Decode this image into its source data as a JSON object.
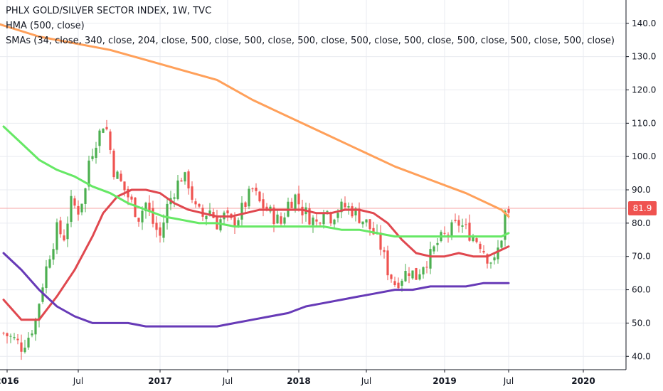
{
  "chart_data": {
    "type": "candlestick",
    "title": "PHLX GOLD/SILVER SECTOR INDEX, 1W, TVC",
    "indicators": [
      "HMA (500, close)",
      "SMAs (34, close, 340, close, 204, close, 500, close, 500, close, 500, close, 500, close, 500, close, 500, close, 500, close, 500, close)"
    ],
    "last_price": "81.9",
    "ylim": [
      36,
      147
    ],
    "y_ticks": [
      "140.0",
      "130.0",
      "120.0",
      "110.0",
      "100.0",
      "90.0",
      "80.0",
      "70.0",
      "60.0",
      "50.0",
      "40.0"
    ],
    "x_ticks": [
      "2016",
      "Jul",
      "2017",
      "Jul",
      "2018",
      "Jul",
      "2019",
      "Jul",
      "2020"
    ],
    "price_path": [
      [
        0,
        47
      ],
      [
        3,
        45
      ],
      [
        5,
        43
      ],
      [
        7,
        46
      ],
      [
        9,
        51
      ],
      [
        11,
        62
      ],
      [
        13,
        71
      ],
      [
        15,
        78
      ],
      [
        17,
        76
      ],
      [
        19,
        86
      ],
      [
        21,
        84
      ],
      [
        23,
        90
      ],
      [
        24,
        99
      ],
      [
        25,
        102
      ],
      [
        26,
        105
      ],
      [
        27,
        107
      ],
      [
        28,
        110
      ],
      [
        29,
        108
      ],
      [
        31,
        96
      ],
      [
        33,
        92
      ],
      [
        35,
        88
      ],
      [
        37,
        84
      ],
      [
        38,
        82
      ],
      [
        40,
        86
      ],
      [
        42,
        80
      ],
      [
        44,
        76
      ],
      [
        46,
        85
      ],
      [
        48,
        90
      ],
      [
        50,
        94
      ],
      [
        52,
        92
      ],
      [
        54,
        84
      ],
      [
        56,
        82
      ],
      [
        58,
        84
      ],
      [
        60,
        80
      ],
      [
        62,
        82
      ],
      [
        64,
        80
      ],
      [
        66,
        82
      ],
      [
        68,
        86
      ],
      [
        70,
        90
      ],
      [
        72,
        86
      ],
      [
        74,
        84
      ],
      [
        76,
        82
      ],
      [
        78,
        80
      ],
      [
        80,
        86
      ],
      [
        82,
        88
      ],
      [
        84,
        84
      ],
      [
        86,
        82
      ],
      [
        88,
        80
      ],
      [
        90,
        85
      ],
      [
        92,
        82
      ],
      [
        94,
        84
      ],
      [
        96,
        85
      ],
      [
        98,
        84
      ],
      [
        100,
        82
      ],
      [
        102,
        80
      ],
      [
        104,
        77
      ],
      [
        106,
        73
      ],
      [
        108,
        66
      ],
      [
        110,
        62
      ],
      [
        112,
        64
      ],
      [
        114,
        66
      ],
      [
        116,
        64
      ],
      [
        118,
        68
      ],
      [
        120,
        70
      ],
      [
        122,
        74
      ],
      [
        124,
        76
      ],
      [
        126,
        78
      ],
      [
        128,
        80
      ],
      [
        130,
        78
      ],
      [
        132,
        76
      ],
      [
        134,
        74
      ],
      [
        136,
        70
      ],
      [
        138,
        68
      ],
      [
        139,
        72
      ],
      [
        140,
        76
      ],
      [
        141,
        83
      ],
      [
        142,
        82
      ]
    ],
    "series": [
      {
        "name": "HMA (500, close)",
        "color": "#ffa05a",
        "points": [
          [
            -2,
            140
          ],
          [
            10,
            136
          ],
          [
            20,
            134
          ],
          [
            30,
            132
          ],
          [
            40,
            129
          ],
          [
            50,
            126
          ],
          [
            60,
            123
          ],
          [
            70,
            117
          ],
          [
            80,
            112
          ],
          [
            90,
            107
          ],
          [
            100,
            102
          ],
          [
            110,
            97
          ],
          [
            120,
            93
          ],
          [
            130,
            89
          ],
          [
            140,
            84
          ],
          [
            142,
            82
          ]
        ]
      },
      {
        "name": "SMA 34",
        "color": "#e0484f",
        "points": [
          [
            0,
            57
          ],
          [
            5,
            51
          ],
          [
            10,
            51
          ],
          [
            15,
            58
          ],
          [
            20,
            66
          ],
          [
            25,
            76
          ],
          [
            28,
            83
          ],
          [
            32,
            88
          ],
          [
            36,
            90
          ],
          [
            40,
            90
          ],
          [
            44,
            89
          ],
          [
            48,
            86
          ],
          [
            52,
            84
          ],
          [
            56,
            83
          ],
          [
            60,
            82
          ],
          [
            64,
            82
          ],
          [
            68,
            83
          ],
          [
            72,
            84
          ],
          [
            76,
            84
          ],
          [
            80,
            84
          ],
          [
            84,
            84
          ],
          [
            88,
            83
          ],
          [
            92,
            83
          ],
          [
            96,
            84
          ],
          [
            100,
            84
          ],
          [
            104,
            83
          ],
          [
            108,
            80
          ],
          [
            112,
            75
          ],
          [
            116,
            71
          ],
          [
            120,
            70
          ],
          [
            124,
            70
          ],
          [
            128,
            71
          ],
          [
            132,
            70
          ],
          [
            136,
            70
          ],
          [
            140,
            72
          ],
          [
            142,
            73
          ]
        ]
      },
      {
        "name": "SMA 204",
        "color": "#66e865",
        "points": [
          [
            0,
            109
          ],
          [
            5,
            104
          ],
          [
            10,
            99
          ],
          [
            15,
            96
          ],
          [
            20,
            94
          ],
          [
            25,
            91
          ],
          [
            30,
            89
          ],
          [
            35,
            86
          ],
          [
            40,
            84
          ],
          [
            45,
            82
          ],
          [
            50,
            81
          ],
          [
            55,
            80
          ],
          [
            60,
            80
          ],
          [
            65,
            79
          ],
          [
            70,
            79
          ],
          [
            75,
            79
          ],
          [
            80,
            79
          ],
          [
            85,
            79
          ],
          [
            90,
            79
          ],
          [
            95,
            78
          ],
          [
            100,
            78
          ],
          [
            105,
            77
          ],
          [
            110,
            76
          ],
          [
            115,
            76
          ],
          [
            120,
            76
          ],
          [
            125,
            76
          ],
          [
            130,
            76
          ],
          [
            135,
            76
          ],
          [
            140,
            76
          ],
          [
            142,
            77
          ]
        ]
      },
      {
        "name": "SMA 340",
        "color": "#673ab7",
        "points": [
          [
            0,
            71
          ],
          [
            5,
            66
          ],
          [
            10,
            60
          ],
          [
            15,
            55
          ],
          [
            20,
            52
          ],
          [
            25,
            50
          ],
          [
            30,
            50
          ],
          [
            35,
            50
          ],
          [
            40,
            49
          ],
          [
            45,
            49
          ],
          [
            50,
            49
          ],
          [
            55,
            49
          ],
          [
            60,
            49
          ],
          [
            65,
            50
          ],
          [
            70,
            51
          ],
          [
            75,
            52
          ],
          [
            80,
            53
          ],
          [
            85,
            55
          ],
          [
            90,
            56
          ],
          [
            95,
            57
          ],
          [
            100,
            58
          ],
          [
            105,
            59
          ],
          [
            110,
            60
          ],
          [
            115,
            60
          ],
          [
            120,
            61
          ],
          [
            125,
            61
          ],
          [
            130,
            61
          ],
          [
            135,
            62
          ],
          [
            140,
            62
          ],
          [
            142,
            62
          ]
        ]
      }
    ],
    "grid": true,
    "legend_position": "top-left"
  },
  "colors": {
    "up": "#4caf50",
    "down": "#ef5350",
    "grid": "#e9ebf0",
    "axis": "#131722",
    "price_tag": "#ef5350"
  }
}
